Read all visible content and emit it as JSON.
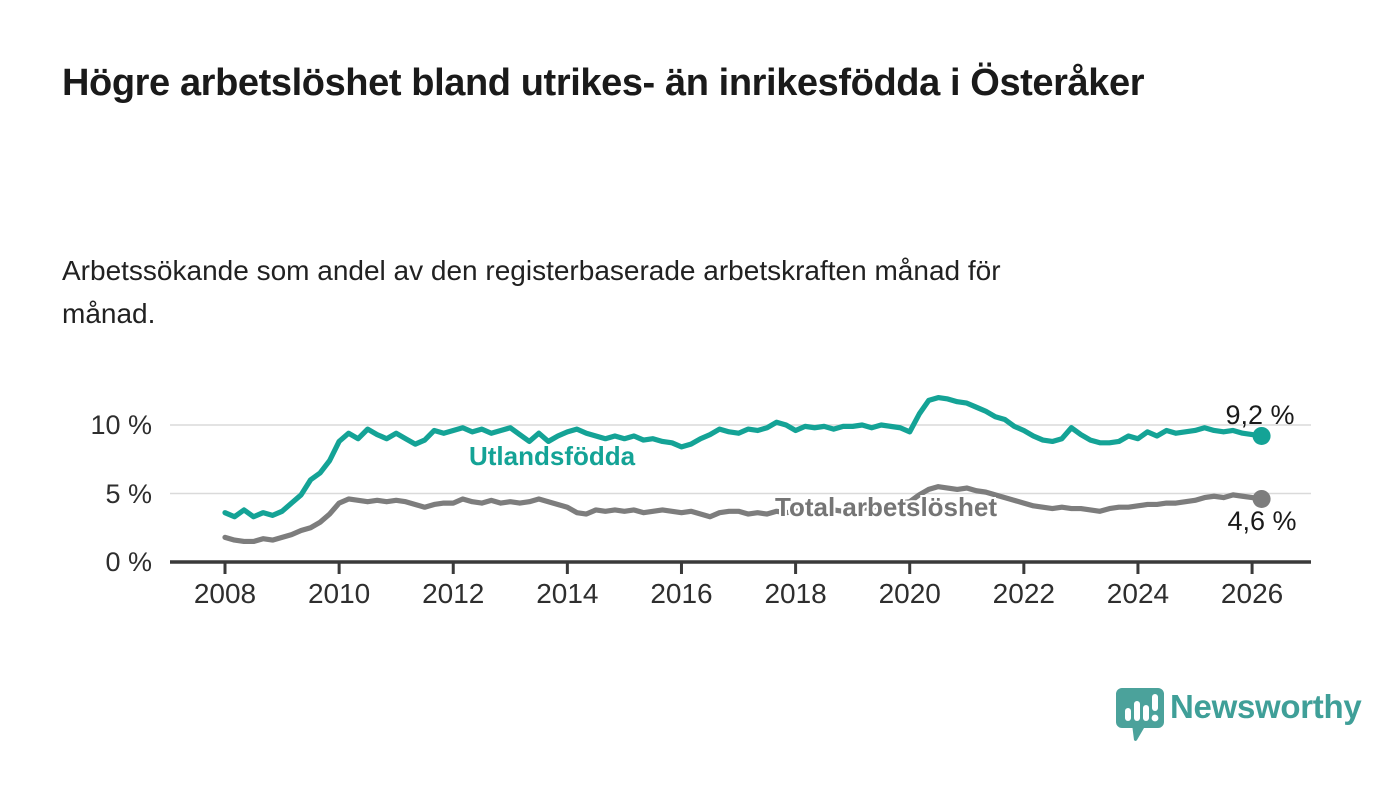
{
  "header": {
    "title": "Högre arbetslöshet bland utrikes- än inrikesfödda i Österåker",
    "subtitle": "Arbetssökande som andel av den registerbaserade arbetskraften månad för månad."
  },
  "chart_data": {
    "type": "line",
    "title": "Högre arbetslöshet bland utrikes- än inrikesfödda i Österåker",
    "subtitle": "Arbetssökande som andel av den registerbaserade arbetskraften månad för månad.",
    "unit": "%",
    "x0": 2008.0,
    "dx": 0.1666667,
    "xlim": [
      2007.0,
      2027.0
    ],
    "ylim": [
      0,
      13.5
    ],
    "grid": "horizontal",
    "x_ticks": [
      2008,
      2010,
      2012,
      2014,
      2016,
      2018,
      2020,
      2022,
      2024,
      2026
    ],
    "y_ticks": [
      {
        "value": 0,
        "label": "0 %"
      },
      {
        "value": 5,
        "label": "5 %"
      },
      {
        "value": 10,
        "label": "10 %"
      }
    ],
    "series": [
      {
        "name": "Utlandsfödda",
        "color": "#14a396",
        "end_label": "9,2 %",
        "end_value": 9.2,
        "values": [
          3.6,
          3.3,
          3.8,
          3.3,
          3.6,
          3.4,
          3.7,
          4.3,
          4.9,
          6.0,
          6.5,
          7.4,
          8.8,
          9.4,
          9.0,
          9.7,
          9.3,
          9.0,
          9.4,
          9.0,
          8.6,
          8.9,
          9.6,
          9.4,
          9.6,
          9.8,
          9.5,
          9.7,
          9.4,
          9.6,
          9.8,
          9.3,
          8.8,
          9.4,
          8.8,
          9.2,
          9.5,
          9.7,
          9.4,
          9.2,
          9.0,
          9.2,
          9.0,
          9.2,
          8.9,
          9.0,
          8.8,
          8.7,
          8.4,
          8.6,
          9.0,
          9.3,
          9.7,
          9.5,
          9.4,
          9.7,
          9.6,
          9.8,
          10.2,
          10.0,
          9.6,
          9.9,
          9.8,
          9.9,
          9.7,
          9.9,
          9.9,
          10.0,
          9.8,
          10.0,
          9.9,
          9.8,
          9.5,
          10.8,
          11.8,
          12.0,
          11.9,
          11.7,
          11.6,
          11.3,
          11.0,
          10.6,
          10.4,
          9.9,
          9.6,
          9.2,
          8.9,
          8.8,
          9.0,
          9.8,
          9.3,
          8.9,
          8.7,
          8.7,
          8.8,
          9.2,
          9.0,
          9.5,
          9.2,
          9.6,
          9.4,
          9.5,
          9.6,
          9.8,
          9.6,
          9.5,
          9.6,
          9.4,
          9.3,
          9.2
        ]
      },
      {
        "name": "Total arbetslöshet",
        "color": "#7d7d7d",
        "end_label": "4,6 %",
        "end_value": 4.6,
        "values": [
          1.8,
          1.6,
          1.5,
          1.5,
          1.7,
          1.6,
          1.8,
          2.0,
          2.3,
          2.5,
          2.9,
          3.5,
          4.3,
          4.6,
          4.5,
          4.4,
          4.5,
          4.4,
          4.5,
          4.4,
          4.2,
          4.0,
          4.2,
          4.3,
          4.3,
          4.6,
          4.4,
          4.3,
          4.5,
          4.3,
          4.4,
          4.3,
          4.4,
          4.6,
          4.4,
          4.2,
          4.0,
          3.6,
          3.5,
          3.8,
          3.7,
          3.8,
          3.7,
          3.8,
          3.6,
          3.7,
          3.8,
          3.7,
          3.6,
          3.7,
          3.5,
          3.3,
          3.6,
          3.7,
          3.7,
          3.5,
          3.6,
          3.5,
          3.7,
          3.6,
          3.7,
          3.8,
          3.6,
          3.7,
          3.8,
          3.7,
          3.8,
          3.9,
          4.0,
          4.1,
          4.2,
          4.3,
          4.4,
          4.9,
          5.3,
          5.5,
          5.4,
          5.3,
          5.4,
          5.2,
          5.1,
          4.9,
          4.7,
          4.5,
          4.3,
          4.1,
          4.0,
          3.9,
          4.0,
          3.9,
          3.9,
          3.8,
          3.7,
          3.9,
          4.0,
          4.0,
          4.1,
          4.2,
          4.2,
          4.3,
          4.3,
          4.4,
          4.5,
          4.7,
          4.8,
          4.7,
          4.9,
          4.8,
          4.7,
          4.6
        ]
      }
    ],
    "colors": {
      "gridline": "#dadada",
      "axis": "#3a3a3a",
      "tick_text": "#2e2e2e"
    }
  },
  "footer": {
    "brand": "Newsworthy",
    "brand_color": "#3f9f98",
    "logo_icon": "bar-chart-speech-bubble-icon"
  }
}
